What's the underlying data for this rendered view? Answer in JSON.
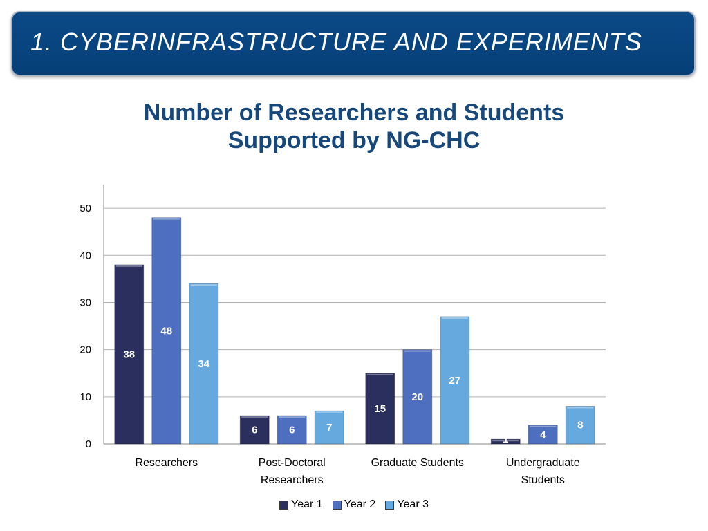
{
  "header": {
    "title": "1. CYBERINFRASTRUCTURE AND EXPERIMENTS"
  },
  "chart_data": {
    "type": "bar",
    "title": [
      "Number of Researchers and Students",
      "Supported by NG-CHC"
    ],
    "categories": [
      [
        "Researchers"
      ],
      [
        "Post-Doctoral",
        "Researchers"
      ],
      [
        "Graduate Students"
      ],
      [
        "Undergraduate",
        "Students"
      ]
    ],
    "series": [
      {
        "name": "Year 1",
        "values": [
          38,
          6,
          15,
          1
        ],
        "color": "#2a2f5e"
      },
      {
        "name": "Year 2",
        "values": [
          48,
          6,
          20,
          4
        ],
        "color": "#4e6fbf"
      },
      {
        "name": "Year 3",
        "values": [
          34,
          7,
          27,
          8
        ],
        "color": "#66a9de"
      }
    ],
    "yticks": [
      0,
      10,
      20,
      30,
      40,
      50
    ],
    "ylim": [
      0,
      55
    ],
    "grid": true,
    "data_labels": true,
    "legend_position": "bottom"
  }
}
